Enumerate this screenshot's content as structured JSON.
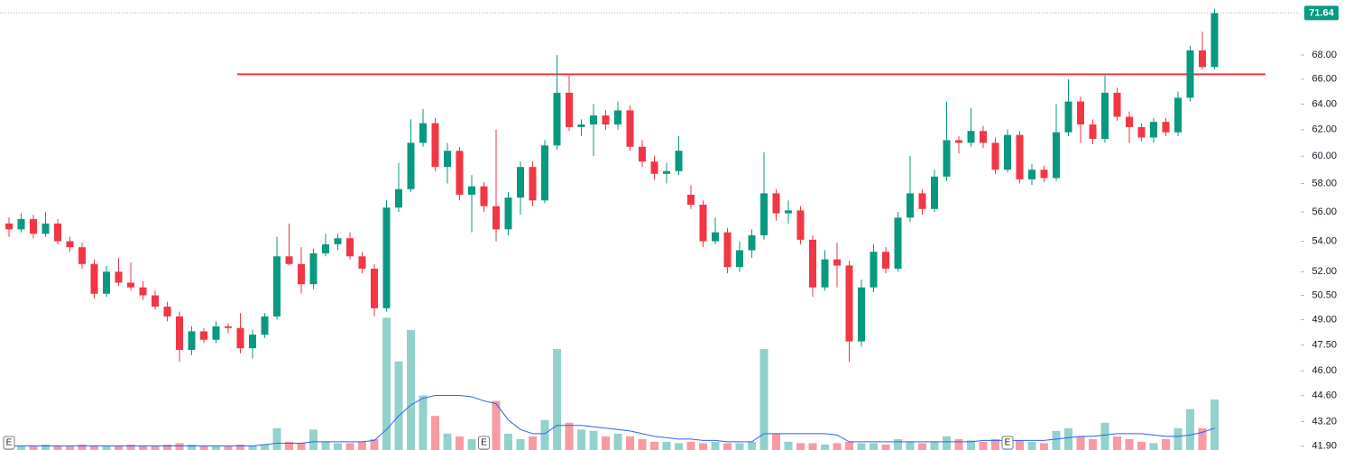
{
  "chart_data": {
    "type": "candlestick",
    "log_scale": true,
    "up_color": "#089981",
    "down_color": "#f23645",
    "volume_up_color": "rgba(38,166,154,0.5)",
    "volume_down_color": "rgba(242,54,69,0.5)",
    "volume_ma_color": "#2962ff",
    "ylim": [
      41.7,
      72.8
    ],
    "yticks": [
      {
        "value": 41.9,
        "label": "41.90"
      },
      {
        "value": 43.2,
        "label": "43.20"
      },
      {
        "value": 44.6,
        "label": "44.60"
      },
      {
        "value": 46,
        "label": "46.00"
      },
      {
        "value": 47.5,
        "label": "47.50"
      },
      {
        "value": 49,
        "label": "49.00"
      },
      {
        "value": 50.5,
        "label": "50.50"
      },
      {
        "value": 52,
        "label": "52.00"
      },
      {
        "value": 54,
        "label": "54.00"
      },
      {
        "value": 56,
        "label": "56.00"
      },
      {
        "value": 58,
        "label": "58.00"
      },
      {
        "value": 60,
        "label": "60.00"
      },
      {
        "value": 62,
        "label": "62.00"
      },
      {
        "value": 64,
        "label": "64.00"
      },
      {
        "value": 66,
        "label": "66.00"
      },
      {
        "value": 68,
        "label": "68.00"
      }
    ],
    "levels": [
      {
        "value": 66.4,
        "color": "#f23645"
      }
    ],
    "earnings_markers": [
      {
        "index": 0,
        "label": "E"
      },
      {
        "index": 39,
        "label": "E"
      },
      {
        "index": 82,
        "label": "E"
      }
    ],
    "open": [
      55.2,
      54.8,
      55.5,
      54.5,
      55.2,
      54.0,
      53.6,
      52.5,
      50.6,
      52.0,
      51.3,
      51.0,
      50.5,
      49.8,
      49.2,
      47.2,
      48.3,
      47.8,
      48.6,
      48.5,
      47.3,
      48.1,
      49.2,
      53.0,
      52.5,
      51.2,
      53.2,
      53.8,
      54.2,
      53.0,
      52.2,
      49.7,
      56.3,
      57.6,
      61.0,
      62.5,
      59.2,
      60.4,
      57.2,
      57.8,
      56.4,
      54.8,
      57.0,
      59.2,
      56.8,
      60.8,
      64.9,
      62.2,
      62.4,
      63.1,
      62.4,
      63.5,
      60.7,
      59.6,
      58.7,
      58.9,
      57.2,
      56.5,
      54.0,
      54.6,
      52.3,
      53.4,
      54.4,
      57.3,
      55.9,
      56.1,
      54.1,
      51.0,
      52.8,
      52.4,
      47.7,
      51.0,
      53.3,
      52.2,
      55.6,
      57.3,
      56.2,
      58.5,
      61.2,
      61.0,
      61.9,
      61.0,
      59.0,
      61.6,
      58.3,
      59.0,
      58.4,
      61.8,
      64.2,
      62.4,
      61.3,
      64.9,
      63.0,
      62.2,
      61.4,
      62.6,
      61.8,
      64.5,
      68.4,
      67.0
    ],
    "high": [
      55.6,
      55.9,
      55.8,
      56.0,
      55.5,
      54.3,
      53.9,
      52.8,
      52.4,
      52.9,
      52.6,
      51.4,
      50.8,
      50.1,
      49.5,
      48.6,
      48.5,
      48.9,
      48.8,
      49.4,
      48.4,
      49.4,
      54.3,
      55.2,
      53.6,
      53.5,
      54.5,
      54.5,
      54.6,
      53.3,
      52.5,
      56.8,
      59.5,
      62.8,
      63.6,
      62.9,
      61.0,
      60.7,
      58.6,
      58.1,
      62.0,
      57.4,
      59.6,
      59.6,
      61.2,
      68.0,
      66.3,
      62.8,
      64.0,
      63.5,
      64.2,
      63.9,
      61.2,
      60.0,
      59.5,
      61.5,
      57.9,
      56.8,
      55.6,
      54.9,
      54.0,
      54.8,
      60.3,
      57.6,
      56.8,
      56.4,
      54.4,
      53.4,
      53.9,
      52.7,
      51.5,
      53.8,
      53.6,
      56.0,
      60.0,
      57.6,
      59.0,
      64.2,
      61.5,
      63.7,
      62.3,
      61.4,
      62.0,
      61.9,
      59.4,
      59.3,
      64.0,
      66.0,
      64.6,
      62.8,
      66.3,
      65.3,
      63.4,
      62.5,
      62.9,
      62.9,
      65.0,
      68.8,
      70.0,
      72.0
    ],
    "low": [
      54.3,
      54.6,
      54.2,
      54.3,
      53.8,
      53.3,
      52.2,
      50.3,
      50.4,
      51.1,
      50.8,
      50.2,
      49.6,
      48.9,
      46.5,
      46.9,
      47.6,
      47.6,
      48.2,
      47.0,
      46.7,
      47.9,
      49.0,
      52.4,
      50.6,
      50.9,
      53.0,
      53.4,
      52.8,
      51.9,
      49.2,
      49.5,
      56.0,
      57.4,
      60.7,
      58.9,
      58.0,
      56.8,
      54.6,
      56.0,
      54.0,
      54.4,
      55.8,
      56.4,
      56.6,
      60.5,
      61.9,
      61.5,
      60.0,
      62.0,
      62.0,
      60.4,
      59.2,
      58.3,
      58.0,
      58.6,
      56.2,
      53.6,
      53.8,
      51.9,
      52.0,
      52.9,
      54.1,
      55.4,
      55.2,
      53.8,
      50.4,
      50.8,
      51.0,
      46.5,
      47.4,
      50.7,
      51.9,
      52.0,
      55.3,
      55.8,
      56.0,
      58.2,
      60.2,
      60.7,
      60.6,
      58.7,
      58.8,
      58.0,
      57.9,
      58.1,
      58.2,
      61.5,
      61.0,
      60.9,
      61.0,
      62.7,
      61.0,
      61.1,
      61.0,
      61.5,
      61.5,
      64.2,
      66.8,
      66.8
    ],
    "close": [
      54.8,
      55.5,
      54.5,
      55.2,
      54.0,
      53.6,
      52.5,
      50.6,
      52.0,
      51.3,
      51.0,
      50.5,
      49.8,
      49.2,
      47.2,
      48.3,
      47.8,
      48.6,
      48.5,
      47.3,
      48.1,
      49.2,
      53.0,
      52.5,
      51.2,
      53.2,
      53.8,
      54.2,
      53.0,
      52.2,
      49.7,
      56.3,
      57.6,
      61.0,
      62.5,
      59.2,
      60.4,
      57.2,
      57.8,
      56.4,
      54.8,
      57.0,
      59.2,
      56.8,
      60.8,
      64.9,
      62.2,
      62.4,
      63.1,
      62.4,
      63.5,
      60.7,
      59.6,
      58.7,
      58.9,
      60.4,
      56.5,
      54.0,
      54.6,
      52.3,
      53.4,
      54.4,
      57.3,
      55.9,
      56.1,
      54.1,
      51.0,
      52.8,
      52.4,
      47.7,
      51.0,
      53.3,
      52.2,
      55.6,
      57.3,
      56.2,
      58.5,
      61.2,
      61.0,
      61.9,
      61.0,
      59.0,
      61.6,
      58.3,
      59.0,
      58.4,
      61.8,
      64.2,
      62.4,
      61.3,
      64.9,
      63.0,
      62.2,
      61.4,
      62.6,
      61.8,
      64.5,
      68.4,
      67.0,
      71.64
    ],
    "volume_ylim": [
      0,
      330
    ],
    "volume": [
      4,
      3,
      3,
      4,
      3,
      3,
      4,
      3,
      3,
      3,
      4,
      3,
      3,
      4,
      5,
      4,
      3,
      3,
      3,
      4,
      3,
      4,
      16,
      6,
      5,
      15,
      6,
      5,
      5,
      6,
      8,
      97,
      65,
      88,
      40,
      25,
      12,
      10,
      8,
      7,
      36,
      12,
      8,
      10,
      22,
      74,
      20,
      15,
      14,
      10,
      12,
      10,
      8,
      6,
      6,
      5,
      6,
      5,
      6,
      5,
      5,
      6,
      74,
      12,
      6,
      5,
      5,
      4,
      5,
      6,
      5,
      5,
      4,
      8,
      6,
      5,
      6,
      10,
      8,
      7,
      6,
      8,
      6,
      7,
      6,
      5,
      14,
      16,
      10,
      8,
      20,
      10,
      8,
      6,
      5,
      8,
      16,
      30,
      16,
      37
    ],
    "volume_ma": [
      3,
      3,
      3,
      3,
      3,
      3,
      3,
      3,
      3,
      3,
      3,
      3,
      3,
      3,
      3,
      3,
      3,
      3,
      3,
      3,
      3,
      4,
      5,
      5,
      5,
      6,
      6,
      6,
      6,
      6,
      7,
      15,
      25,
      33,
      38,
      40,
      40,
      40,
      39,
      36,
      34,
      22,
      15,
      12,
      12,
      18,
      18,
      18,
      17,
      16,
      15,
      14,
      12,
      10,
      9,
      8,
      8,
      7,
      7,
      6,
      6,
      6,
      12,
      12,
      12,
      12,
      12,
      12,
      11,
      6,
      6,
      6,
      6,
      6,
      6,
      6,
      6,
      6,
      6,
      6,
      7,
      7,
      7,
      7,
      7,
      7,
      8,
      9,
      10,
      10,
      11,
      12,
      12,
      12,
      11,
      10,
      10,
      11,
      13,
      16
    ]
  }
}
